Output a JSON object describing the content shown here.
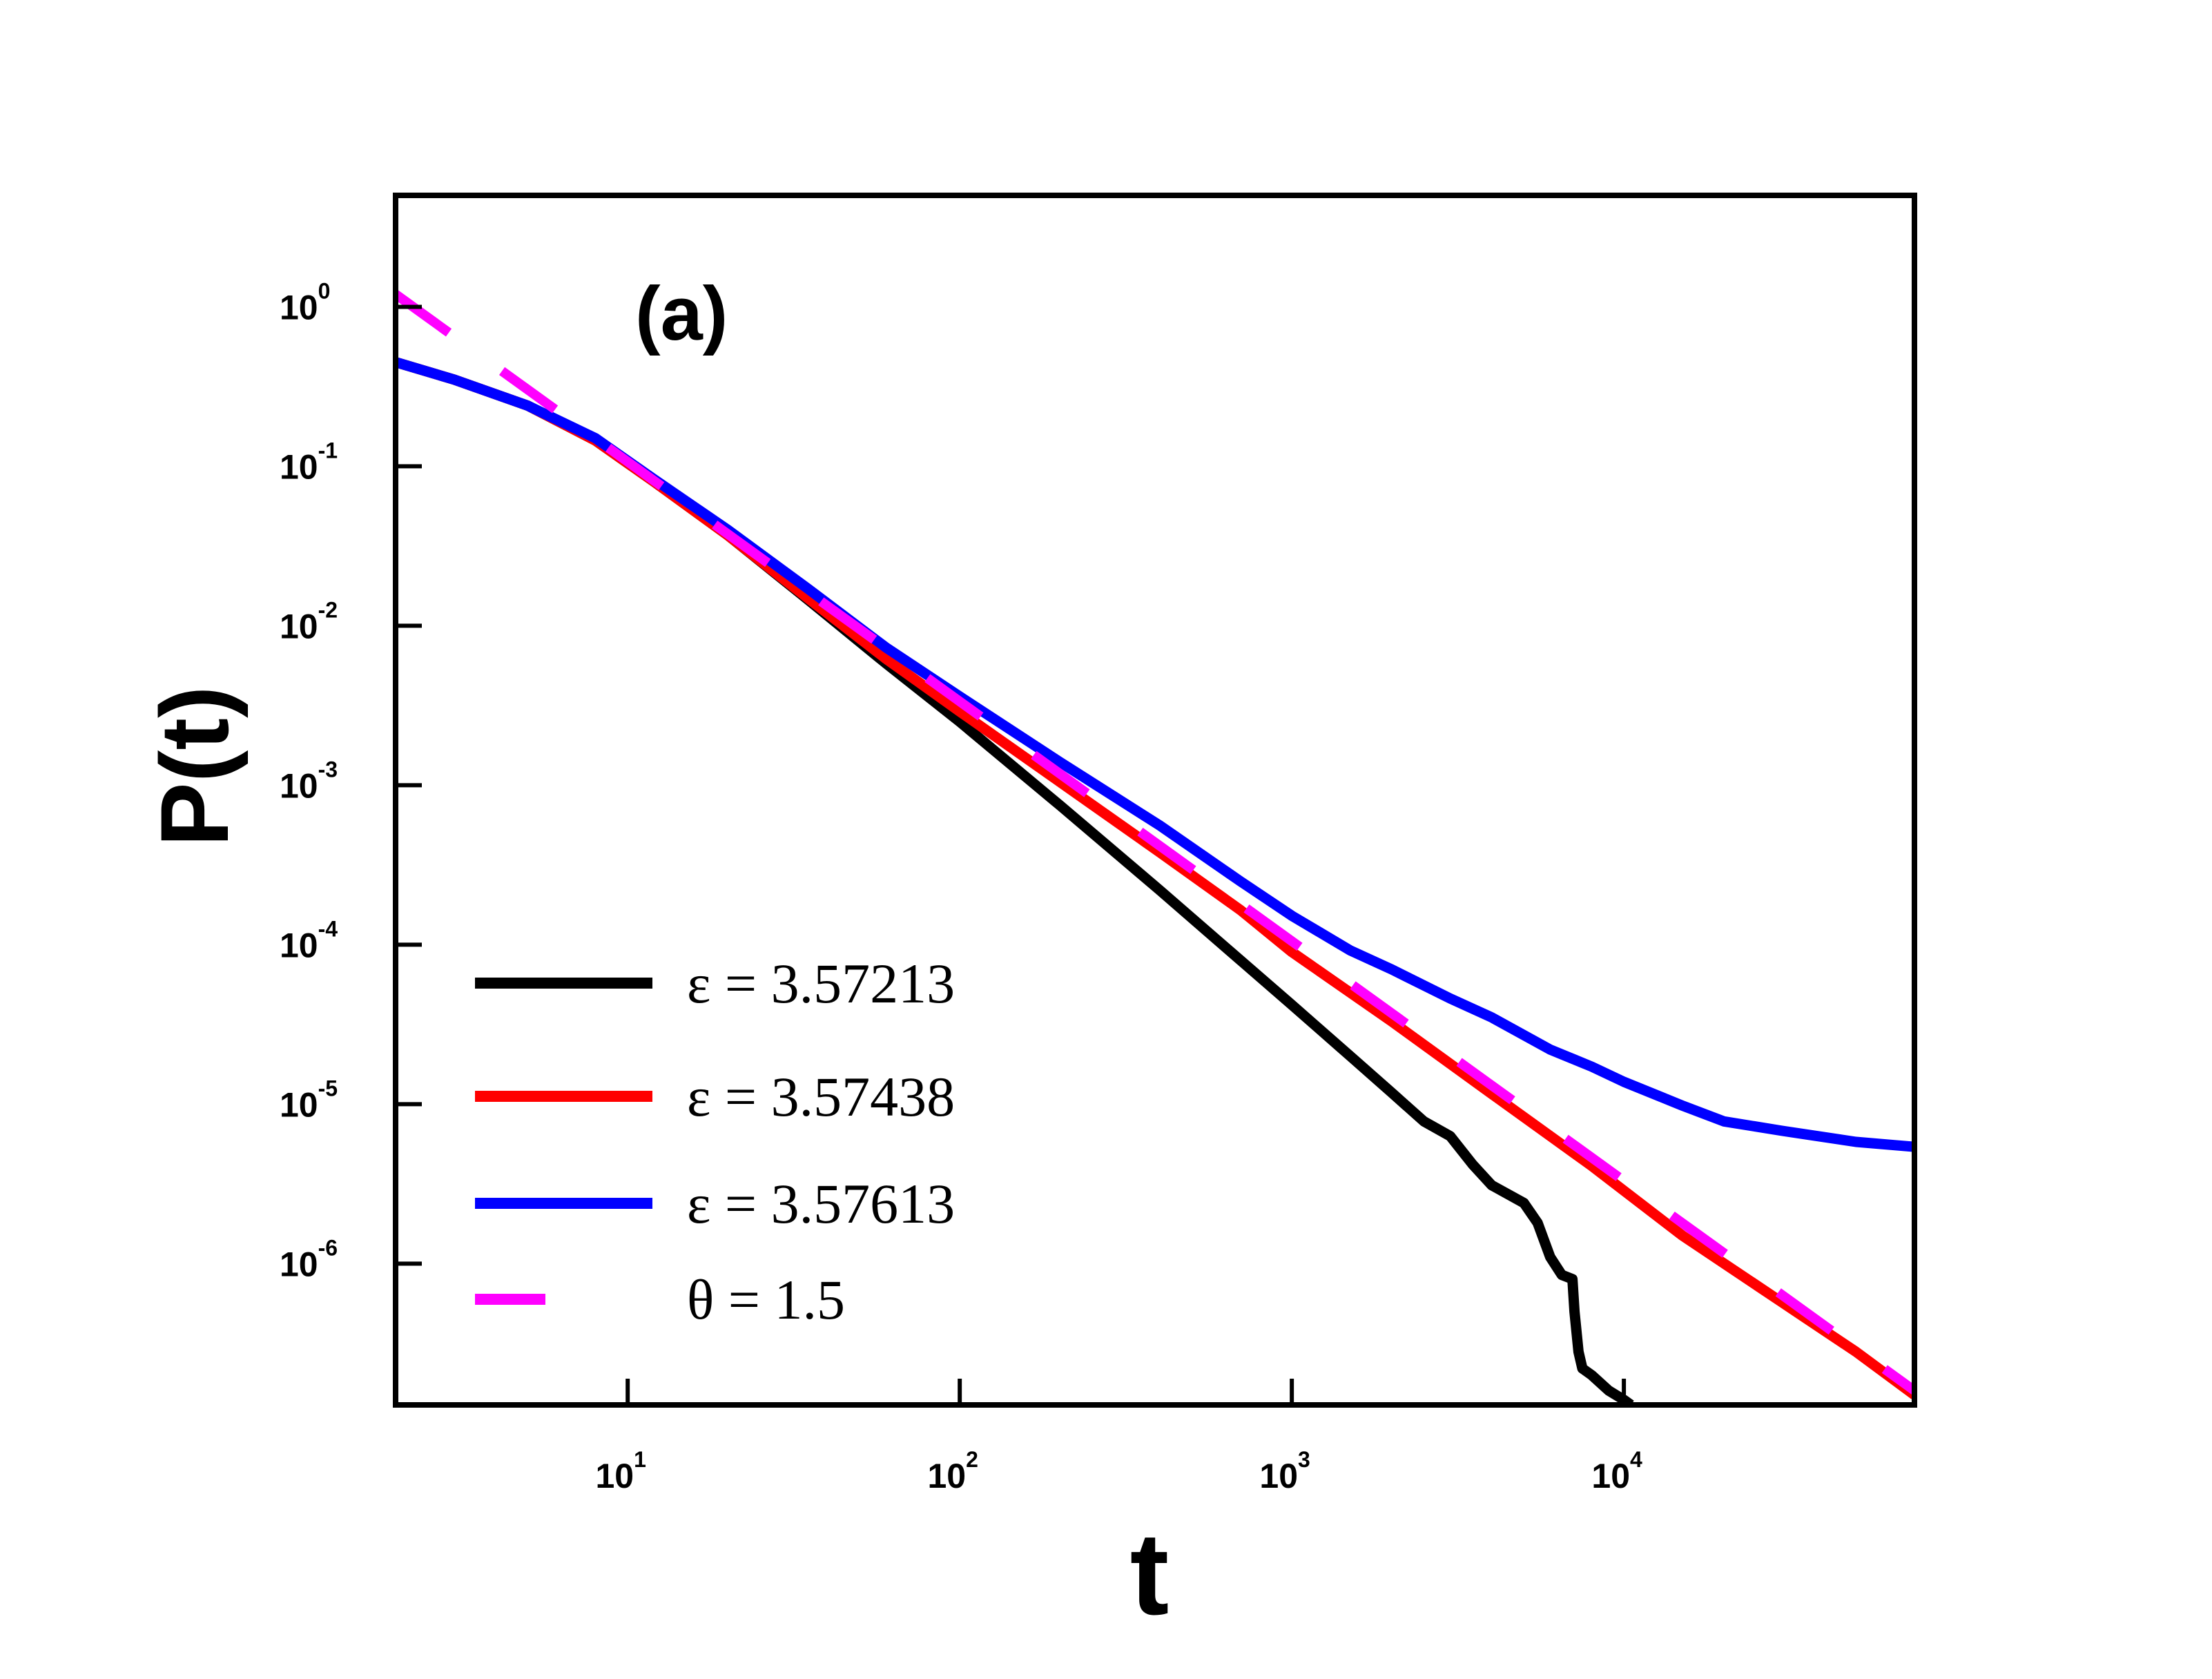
{
  "chart_data": {
    "type": "line",
    "title": "",
    "panel_label": "(a)",
    "xlabel": "t",
    "ylabel": "P(t)",
    "xscale": "log",
    "yscale": "log",
    "xlim": [
      2,
      75000
    ],
    "ylim": [
      1.3e-07,
      5
    ],
    "x_ticks": [
      {
        "value": 10,
        "base": "10",
        "exp": "1"
      },
      {
        "value": 100,
        "base": "10",
        "exp": "2"
      },
      {
        "value": 1000,
        "base": "10",
        "exp": "3"
      },
      {
        "value": 10000,
        "base": "10",
        "exp": "4"
      }
    ],
    "y_ticks": [
      {
        "value": 1,
        "base": "10",
        "exp": "0"
      },
      {
        "value": 0.1,
        "base": "10",
        "exp": "-1"
      },
      {
        "value": 0.01,
        "base": "10",
        "exp": "-2"
      },
      {
        "value": 0.001,
        "base": "10",
        "exp": "-3"
      },
      {
        "value": 0.0001,
        "base": "10",
        "exp": "-4"
      },
      {
        "value": 1e-05,
        "base": "10",
        "exp": "-5"
      },
      {
        "value": 1e-06,
        "base": "10",
        "exp": "-6"
      }
    ],
    "legend_position": "bottom-left",
    "series": [
      {
        "name": "ε = 3.57213",
        "color": "#000000",
        "style": "solid",
        "x": [
          2,
          3,
          5,
          8,
          12,
          20,
          35,
          60,
          100,
          200,
          400,
          700,
          1000,
          1500,
          2000,
          2500,
          3000,
          3500,
          4000,
          5000,
          5500,
          6000,
          6500,
          7000,
          7100,
          7300,
          7500,
          8000,
          9000,
          10000,
          10500
        ],
        "y": [
          0.45,
          0.35,
          0.24,
          0.145,
          0.08,
          0.037,
          0.0145,
          0.0058,
          0.0025,
          0.00075,
          0.00022,
          8e-05,
          4.2e-05,
          2e-05,
          1.18e-05,
          7.8e-06,
          6.3e-06,
          4.2e-06,
          3.1e-06,
          2.4e-06,
          1.8e-06,
          1.1e-06,
          8.5e-07,
          8e-07,
          5e-07,
          2.8e-07,
          2.2e-07,
          2e-07,
          1.6e-07,
          1.4e-07,
          1.3e-07
        ]
      },
      {
        "name": "ε = 3.57438",
        "color": "#ff0000",
        "style": "solid",
        "x": [
          2,
          3,
          5,
          8,
          12,
          20,
          35,
          60,
          100,
          200,
          400,
          700,
          1000,
          2000,
          4000,
          8000,
          15000,
          30000,
          50000,
          75000
        ],
        "y": [
          0.45,
          0.35,
          0.24,
          0.145,
          0.08,
          0.037,
          0.0148,
          0.0062,
          0.0029,
          0.00105,
          0.00038,
          0.000165,
          9e-05,
          3.3e-05,
          1.16e-05,
          4.1e-06,
          1.5e-06,
          5.7e-07,
          2.8e-07,
          1.5e-07
        ]
      },
      {
        "name": "ε = 3.57613",
        "color": "#0000ff",
        "style": "solid",
        "x": [
          2,
          3,
          5,
          8,
          12,
          20,
          35,
          60,
          100,
          200,
          400,
          700,
          1000,
          1500,
          2000,
          3000,
          4000,
          6000,
          8000,
          10000,
          15000,
          20000,
          30000,
          50000,
          75000
        ],
        "y": [
          0.45,
          0.35,
          0.24,
          0.15,
          0.083,
          0.04,
          0.017,
          0.0073,
          0.0036,
          0.0014,
          0.00056,
          0.00025,
          0.000152,
          9.2e-05,
          7e-05,
          4.6e-05,
          3.5e-05,
          2.2e-05,
          1.72e-05,
          1.38e-05,
          9.8e-06,
          7.8e-06,
          6.8e-06,
          5.8e-06,
          5.4e-06
        ]
      },
      {
        "name": "θ = 1.5",
        "color": "#ff00ff",
        "style": "dashed",
        "x": [
          2,
          75000
        ],
        "y": [
          1.2,
          1.6e-07
        ]
      }
    ]
  }
}
